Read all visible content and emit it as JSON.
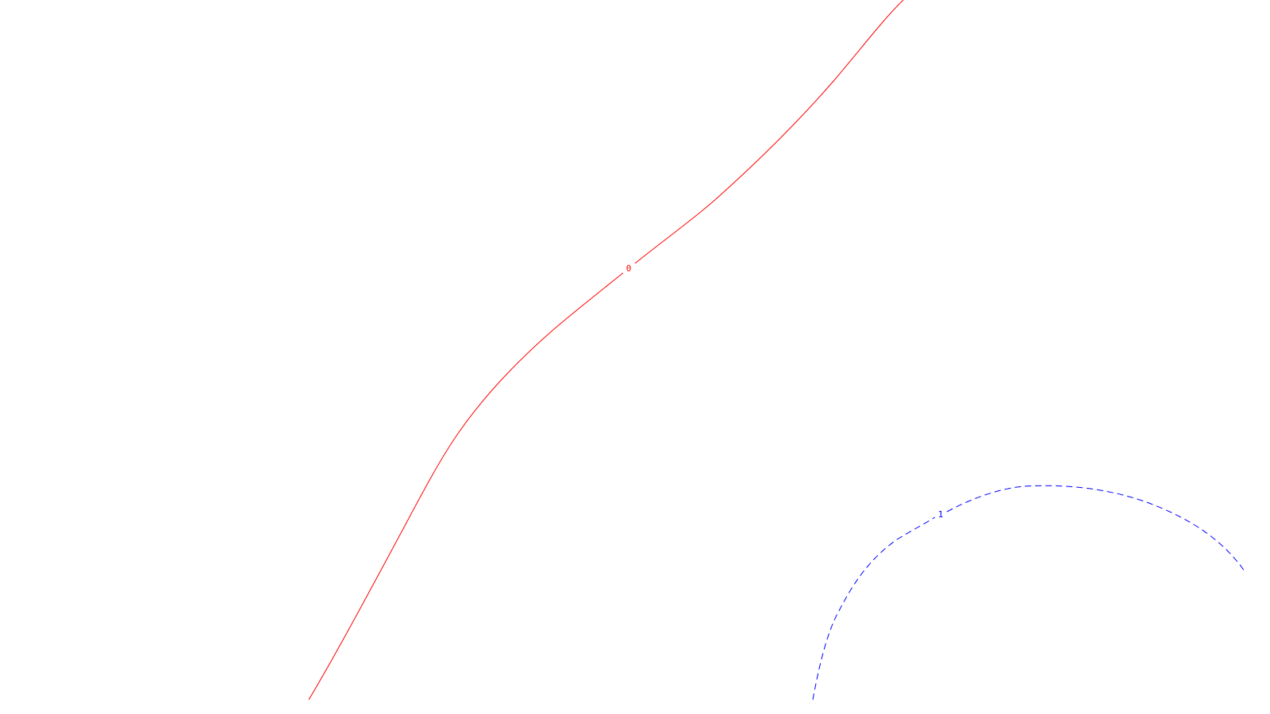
{
  "chart_data": {
    "type": "contour",
    "title": "",
    "xlabel": "",
    "ylabel": "",
    "axes_visible": false,
    "grid": false,
    "background": "#ffffff",
    "contours": [
      {
        "level": 0,
        "label": "0",
        "color": "#ff0000",
        "line_style": "solid"
      },
      {
        "level": 1,
        "label": "1",
        "color": "#0000ff",
        "line_style": "dashed"
      }
    ]
  }
}
